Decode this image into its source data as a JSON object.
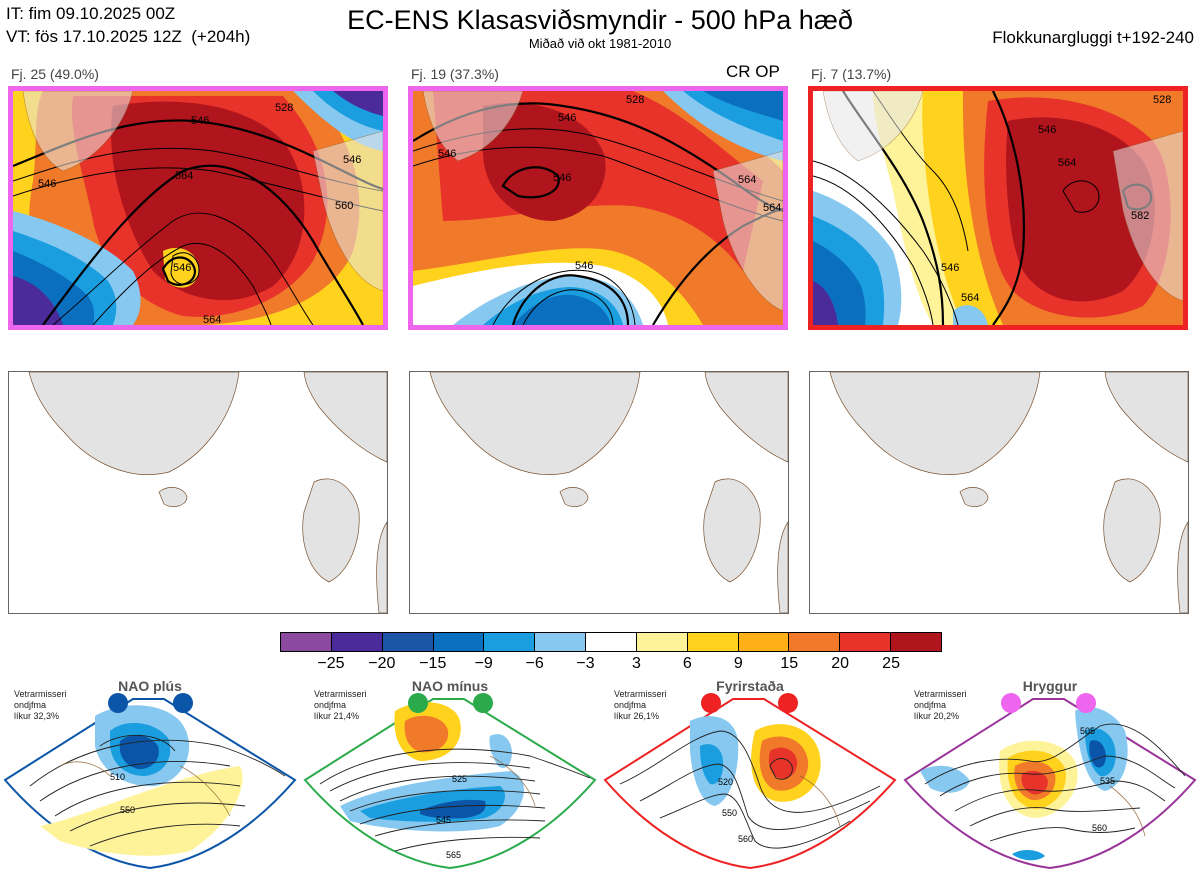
{
  "header": {
    "init": "IT: fim 09.10.2025 00Z",
    "valid": "VT: fös 17.10.2025 12Z  (+204h)",
    "title": "EC-ENS Klasasviðsmyndir - 500 hPa hæð",
    "subtitle": "Miðað við okt 1981-2010",
    "window": "Flokkunargluggi t+192-240"
  },
  "clusters": [
    {
      "label": "Fj. 25 (49.0%)",
      "border_color": "#ee66ee",
      "contour_labels": [
        "546",
        "546",
        "564",
        "546",
        "560",
        "528",
        "546",
        "564",
        "546"
      ]
    },
    {
      "label": "Fj. 19 (37.3%)",
      "border_color": "#ee66ee",
      "op_label": "CR OP",
      "contour_labels": [
        "528",
        "546",
        "546",
        "564",
        "546",
        "564",
        "546"
      ]
    },
    {
      "label": "Fj. 7 (13.7%)",
      "border_color": "#ee2222",
      "contour_labels": [
        "546",
        "564",
        "582",
        "546",
        "564",
        "528"
      ]
    }
  ],
  "colorbar": {
    "colors": [
      "#8b4aa0",
      "#4b2a9a",
      "#1a55a8",
      "#0b6fc0",
      "#1b9ee0",
      "#86c8ef",
      "#ffffff",
      "#fff39a",
      "#ffd21e",
      "#ffb016",
      "#f07a2a",
      "#e8332a",
      "#b0141c"
    ],
    "ticks": [
      "−25",
      "−20",
      "−15",
      "−9",
      "−6",
      "−3",
      "3",
      "6",
      "9",
      "15",
      "20",
      "25"
    ]
  },
  "regimes": [
    {
      "name": "NAO plús",
      "note": [
        "Vetrarmisseri",
        "ondjfma",
        "líkur 32,3%"
      ],
      "color": "#0b55a8",
      "contour_labels": [
        "510",
        "550"
      ]
    },
    {
      "name": "NAO mínus",
      "note": [
        "Vetrarmisseri",
        "ondjfma",
        "líkur 21,4%"
      ],
      "color": "#2aaa4a",
      "contour_labels": [
        "525",
        "545",
        "565"
      ]
    },
    {
      "name": "Fyrirstaða",
      "note": [
        "Vetrarmisseri",
        "ondjfma",
        "líkur 26,1%"
      ],
      "color": "#ee2222",
      "contour_labels": [
        "520",
        "550",
        "560"
      ]
    },
    {
      "name": "Hryggur",
      "note": [
        "Vetrarmisseri",
        "ondjfma",
        "líkur 20,2%"
      ],
      "color": "#ee66ee",
      "contour_labels": [
        "505",
        "535",
        "560"
      ]
    }
  ]
}
